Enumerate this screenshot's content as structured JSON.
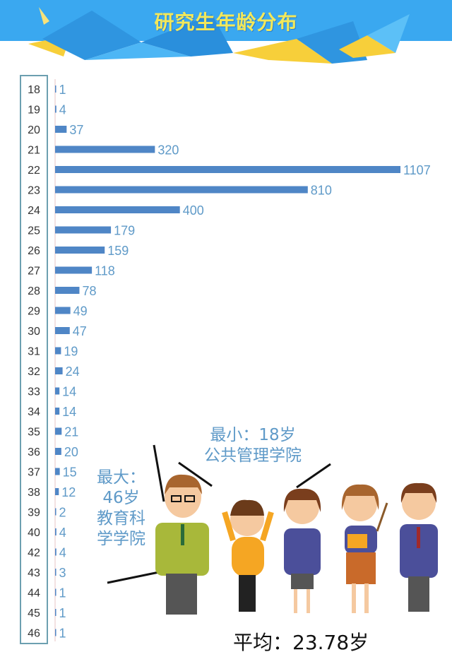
{
  "title": "研究生年龄分布",
  "annotations": {
    "max_label": "最大：",
    "max_age": "46岁",
    "max_college_line1": "教育科",
    "max_college_line2": "学学院",
    "min_label": "最小：18岁",
    "min_college": "公共管理学院",
    "average": "平均：23.78岁"
  },
  "colors": {
    "bar": "#4f86c6",
    "label": "#5f9ac8",
    "banner": "#3aa8f0",
    "accent": "#f7cf3a"
  },
  "chart_data": {
    "type": "bar",
    "orientation": "horizontal",
    "categories": [
      "18",
      "19",
      "20",
      "21",
      "22",
      "23",
      "24",
      "25",
      "26",
      "27",
      "28",
      "29",
      "30",
      "31",
      "32",
      "33",
      "34",
      "35",
      "36",
      "37",
      "38",
      "39",
      "40",
      "42",
      "43",
      "44",
      "45",
      "46"
    ],
    "values": [
      1,
      4,
      37,
      320,
      1107,
      810,
      400,
      179,
      159,
      118,
      78,
      49,
      47,
      19,
      24,
      14,
      14,
      21,
      20,
      15,
      12,
      2,
      4,
      4,
      3,
      1,
      1,
      1
    ],
    "title": "研究生年龄分布",
    "xlabel": "",
    "ylabel": "",
    "xlim": [
      0,
      1107
    ],
    "grid": false
  }
}
